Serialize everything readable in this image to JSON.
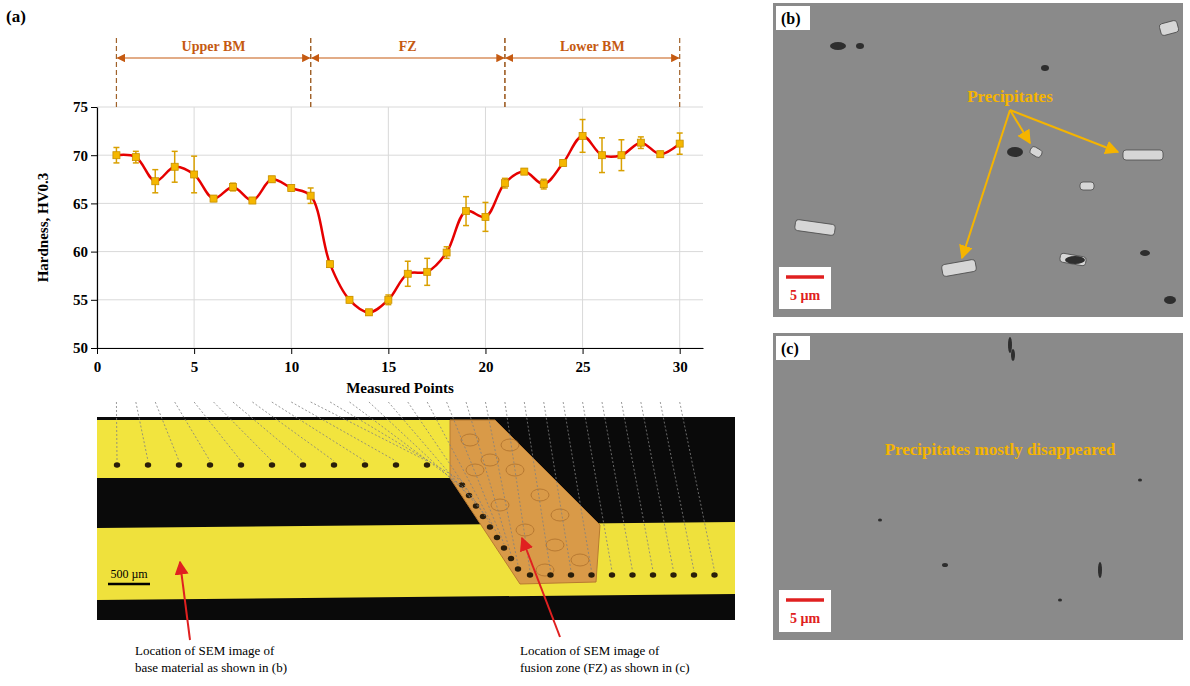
{
  "chart_data": {
    "type": "line",
    "panel_label": "(a)",
    "x_label": "Measured Points",
    "y_label": "Hardness, HV0.3",
    "x": [
      1,
      2,
      3,
      4,
      5,
      6,
      7,
      8,
      9,
      10,
      11,
      12,
      13,
      14,
      15,
      16,
      17,
      18,
      19,
      20,
      21,
      22,
      23,
      24,
      25,
      26,
      27,
      28,
      29,
      30
    ],
    "series": [
      {
        "color": "#e60000",
        "marker": "square",
        "line_style": "smooth",
        "values": [
          70.0,
          69.8,
          67.3,
          68.8,
          68.0,
          65.5,
          66.7,
          65.3,
          67.5,
          66.6,
          65.8,
          58.7,
          55.0,
          53.7,
          55.0,
          57.7,
          57.9,
          59.9,
          64.2,
          63.6,
          67.1,
          68.3,
          67.0,
          69.2,
          72.0,
          70.0,
          70.0,
          71.3,
          70.1,
          71.2
        ],
        "errors": [
          0.8,
          0.6,
          1.2,
          1.6,
          1.9,
          0.3,
          0.4,
          0.3,
          0.3,
          0.3,
          0.8,
          0.3,
          0.3,
          0.3,
          0.5,
          1.3,
          1.4,
          0.6,
          1.5,
          1.5,
          0.5,
          0.3,
          0.5,
          0.3,
          1.7,
          1.8,
          1.6,
          0.6,
          0.3,
          1.1
        ]
      }
    ],
    "xlim": [
      0,
      31.2
    ],
    "xticks": [
      0,
      5,
      10,
      15,
      20,
      25,
      30
    ],
    "ylim": [
      50,
      75
    ],
    "yticks": [
      50,
      55,
      60,
      65,
      70,
      75
    ],
    "grid": true,
    "zones": [
      {
        "label": "Upper BM",
        "from": 1,
        "to": 11
      },
      {
        "label": "FZ",
        "from": 11,
        "to": 21
      },
      {
        "label": "Lower BM",
        "from": 21,
        "to": 30
      }
    ]
  },
  "micrograph": {
    "scale_bar": "500 µm",
    "callouts": [
      {
        "lines": [
          "Location of  SEM image of",
          "base material as shown in (b)"
        ]
      },
      {
        "lines": [
          "Location of  SEM image of",
          "fusion zone (FZ) as shown in (c)"
        ]
      }
    ]
  },
  "sem_images": [
    {
      "panel_label": "(b)",
      "annotation": "Precipitates",
      "scale_bar": "5 µm"
    },
    {
      "panel_label": "(c)",
      "annotation": "Precipitates mostly disappeared",
      "scale_bar": "5 µm"
    }
  ]
}
